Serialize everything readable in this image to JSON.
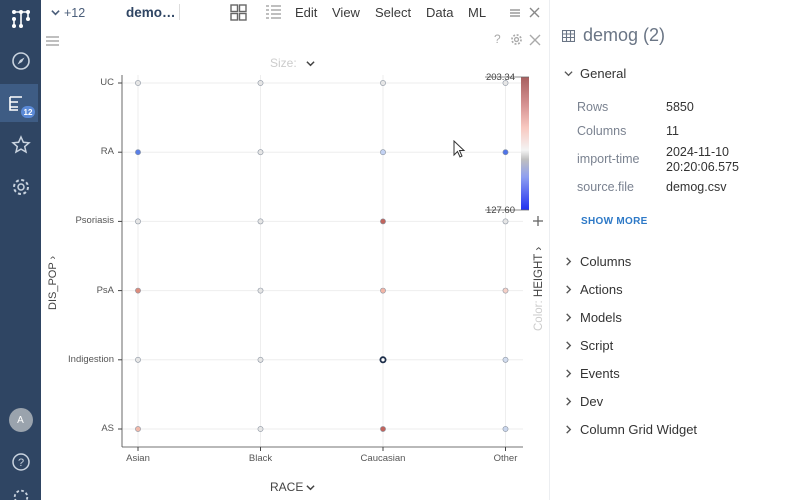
{
  "topbar": {
    "tab_count": "+12",
    "dataset_title": "demo…",
    "menus": [
      "Edit",
      "View",
      "Select",
      "Data",
      "ML"
    ]
  },
  "viewer": {
    "size_label": "Size:",
    "color_label": "Color:",
    "color_column": "HEIGHT",
    "x_column": "RACE",
    "y_column": "DIS_POP",
    "x_categories": [
      "Asian",
      "Black",
      "Caucasian",
      "Other"
    ],
    "y_categories": [
      "UC",
      "RA",
      "Psoriasis",
      "PsA",
      "Indigestion",
      "AS"
    ],
    "color_max": "203.34",
    "color_min": "127.60",
    "points": [
      {
        "x": "Asian",
        "y": "UC",
        "color": "#e6e6e6"
      },
      {
        "x": "Black",
        "y": "UC",
        "color": "#e6e6e6"
      },
      {
        "x": "Caucasian",
        "y": "UC",
        "color": "#e6e6e6"
      },
      {
        "x": "Other",
        "y": "UC",
        "color": "#e6e6e6"
      },
      {
        "x": "Asian",
        "y": "RA",
        "color": "#5a7fe6"
      },
      {
        "x": "Black",
        "y": "RA",
        "color": "#e6e6e6"
      },
      {
        "x": "Caucasian",
        "y": "RA",
        "color": "#c3d2f3"
      },
      {
        "x": "Other",
        "y": "RA",
        "color": "#4f73e8"
      },
      {
        "x": "Asian",
        "y": "Psoriasis",
        "color": "#e6e6e6"
      },
      {
        "x": "Black",
        "y": "Psoriasis",
        "color": "#e6e6e6"
      },
      {
        "x": "Caucasian",
        "y": "Psoriasis",
        "color": "#c0645c"
      },
      {
        "x": "Other",
        "y": "Psoriasis",
        "color": "#e6e6e6"
      },
      {
        "x": "Asian",
        "y": "PsA",
        "color": "#dc8c7c"
      },
      {
        "x": "Black",
        "y": "PsA",
        "color": "#e6e6e6"
      },
      {
        "x": "Caucasian",
        "y": "PsA",
        "color": "#f2b5a6"
      },
      {
        "x": "Other",
        "y": "PsA",
        "color": "#f5d0c7"
      },
      {
        "x": "Asian",
        "y": "Indigestion",
        "color": "#e6e6e6"
      },
      {
        "x": "Black",
        "y": "Indigestion",
        "color": "#e6e6e6"
      },
      {
        "x": "Caucasian",
        "y": "Indigestion",
        "color": "#ffffff",
        "selected": true
      },
      {
        "x": "Other",
        "y": "Indigestion",
        "color": "#d2dcee"
      },
      {
        "x": "Asian",
        "y": "AS",
        "color": "#f1b9aa"
      },
      {
        "x": "Black",
        "y": "AS",
        "color": "#e6e6e6"
      },
      {
        "x": "Caucasian",
        "y": "AS",
        "color": "#c0645c"
      },
      {
        "x": "Other",
        "y": "AS",
        "color": "#cad6ec"
      }
    ]
  },
  "panel": {
    "title": "demog (2)",
    "general_label": "General",
    "props": [
      {
        "key": "Rows",
        "value": "5850"
      },
      {
        "key": "Columns",
        "value": "11"
      },
      {
        "key": "import-time",
        "value": "2024-11-10\n20:20:06.575"
      },
      {
        "key": "source.file",
        "value": "demog.csv"
      }
    ],
    "show_more": "SHOW MORE",
    "sections": [
      "Columns",
      "Actions",
      "Models",
      "Script",
      "Events",
      "Dev",
      "Column Grid Widget"
    ]
  },
  "rail": {
    "badge": "12",
    "avatar": "A",
    "icons": [
      "app-logo-icon",
      "compass-icon",
      "datasets-icon",
      "star-icon",
      "settings-icon",
      "avatar",
      "help-icon"
    ]
  },
  "colors": {
    "rail_bg": "#2f4563",
    "accent": "#2d79c7",
    "scale_high": "#a86060",
    "scale_low": "#2030f0"
  }
}
